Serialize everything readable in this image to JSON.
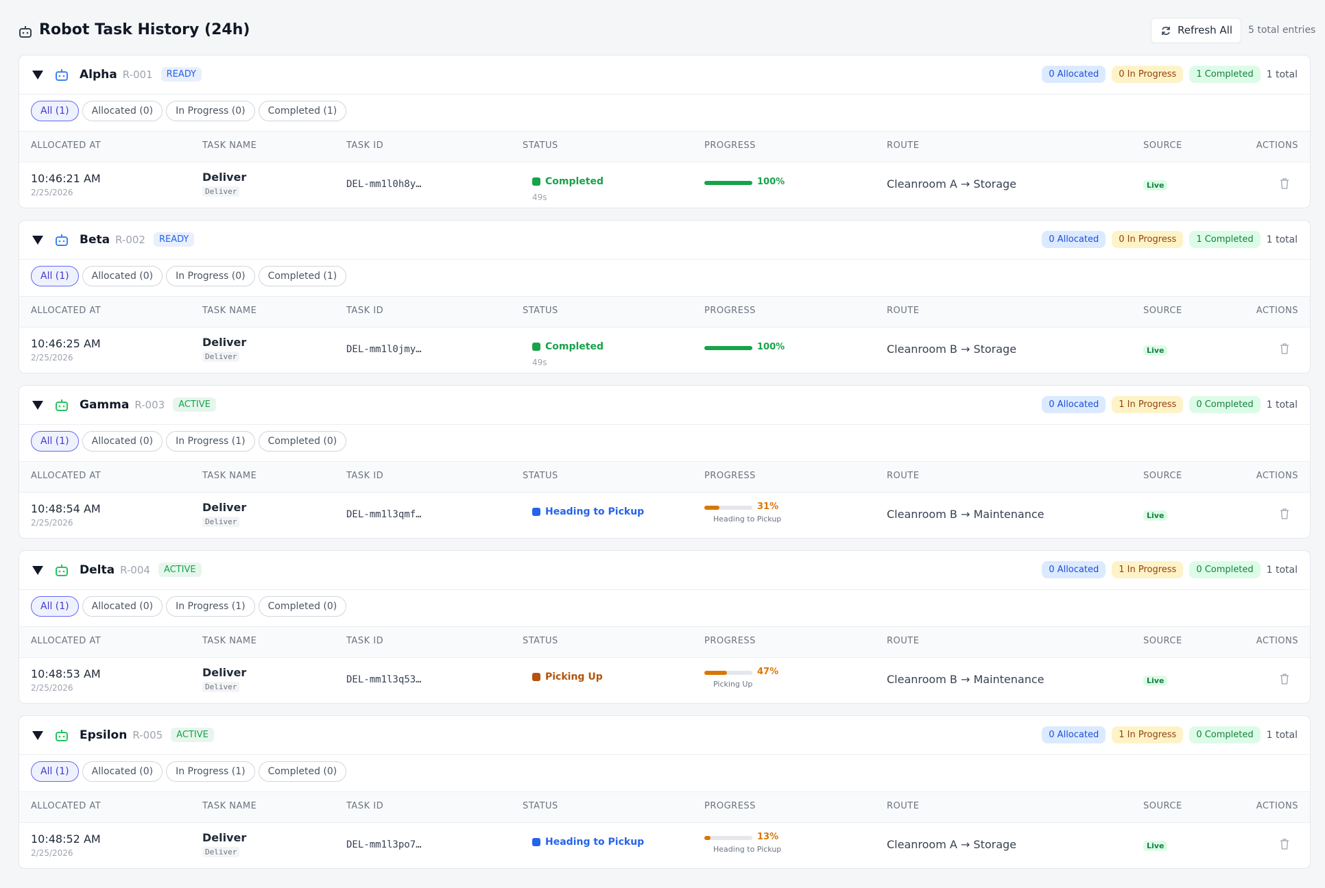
{
  "header": {
    "title": "Robot Task History (24h)",
    "refresh": "Refresh All",
    "total": "5 total entries"
  },
  "columns": [
    "ALLOCATED AT",
    "TASK NAME",
    "TASK ID",
    "STATUS",
    "PROGRESS",
    "ROUTE",
    "SOURCE",
    "ACTIONS"
  ],
  "robots": [
    {
      "name": "Alpha",
      "id": "R-001",
      "state": "READY",
      "state_color": "#2563eb",
      "icon_color": "#3b82f6",
      "counts": [
        "0 Allocated",
        "0 In Progress",
        "1 Completed"
      ],
      "total": "1 total",
      "filters": [
        "All (1)",
        "Allocated (0)",
        "In Progress (0)",
        "Completed (1)"
      ],
      "tasks": [
        {
          "time": "10:46:21 AM",
          "date": "2/25/2026",
          "name": "Deliver",
          "type": "Deliver",
          "task_id": "DEL-mm1l0h8y…",
          "status": "Completed",
          "duration": "49s",
          "progress": 100,
          "progress_label": "100%",
          "color": "#16a34a",
          "route": "Cleanroom A → Storage",
          "source": "Live"
        }
      ]
    },
    {
      "name": "Beta",
      "id": "R-002",
      "state": "READY",
      "state_color": "#2563eb",
      "icon_color": "#3b82f6",
      "counts": [
        "0 Allocated",
        "0 In Progress",
        "1 Completed"
      ],
      "total": "1 total",
      "filters": [
        "All (1)",
        "Allocated (0)",
        "In Progress (0)",
        "Completed (1)"
      ],
      "tasks": [
        {
          "time": "10:46:25 AM",
          "date": "2/25/2026",
          "name": "Deliver",
          "type": "Deliver",
          "task_id": "DEL-mm1l0jmy…",
          "status": "Completed",
          "duration": "49s",
          "progress": 100,
          "progress_label": "100%",
          "color": "#16a34a",
          "route": "Cleanroom B → Storage",
          "source": "Live"
        }
      ]
    },
    {
      "name": "Gamma",
      "id": "R-003",
      "state": "ACTIVE",
      "state_color": "#16a34a",
      "icon_color": "#22c55e",
      "counts": [
        "0 Allocated",
        "1 In Progress",
        "0 Completed"
      ],
      "total": "1 total",
      "filters": [
        "All (1)",
        "Allocated (0)",
        "In Progress (1)",
        "Completed (0)"
      ],
      "tasks": [
        {
          "time": "10:48:54 AM",
          "date": "2/25/2026",
          "name": "Deliver",
          "type": "Deliver",
          "task_id": "DEL-mm1l3qmf…",
          "status": "Heading to Pickup",
          "progress": 31,
          "progress_label": "31%",
          "progress_note": "Heading to Pickup",
          "color": "#2563eb",
          "bar_color": "#d97706",
          "route": "Cleanroom B → Maintenance",
          "source": "Live"
        }
      ]
    },
    {
      "name": "Delta",
      "id": "R-004",
      "state": "ACTIVE",
      "state_color": "#16a34a",
      "icon_color": "#22c55e",
      "counts": [
        "0 Allocated",
        "1 In Progress",
        "0 Completed"
      ],
      "total": "1 total",
      "filters": [
        "All (1)",
        "Allocated (0)",
        "In Progress (1)",
        "Completed (0)"
      ],
      "tasks": [
        {
          "time": "10:48:53 AM",
          "date": "2/25/2026",
          "name": "Deliver",
          "type": "Deliver",
          "task_id": "DEL-mm1l3q53…",
          "status": "Picking Up",
          "progress": 47,
          "progress_label": "47%",
          "progress_note": "Picking Up",
          "color": "#b45309",
          "bar_color": "#d97706",
          "route": "Cleanroom B → Maintenance",
          "source": "Live"
        }
      ]
    },
    {
      "name": "Epsilon",
      "id": "R-005",
      "state": "ACTIVE",
      "state_color": "#16a34a",
      "icon_color": "#22c55e",
      "counts": [
        "0 Allocated",
        "1 In Progress",
        "0 Completed"
      ],
      "total": "1 total",
      "filters": [
        "All (1)",
        "Allocated (0)",
        "In Progress (1)",
        "Completed (0)"
      ],
      "tasks": [
        {
          "time": "10:48:52 AM",
          "date": "2/25/2026",
          "name": "Deliver",
          "type": "Deliver",
          "task_id": "DEL-mm1l3po7…",
          "status": "Heading to Pickup",
          "progress": 13,
          "progress_label": "13%",
          "progress_note": "Heading to Pickup",
          "color": "#2563eb",
          "bar_color": "#d97706",
          "route": "Cleanroom A → Storage",
          "source": "Live"
        }
      ]
    }
  ]
}
